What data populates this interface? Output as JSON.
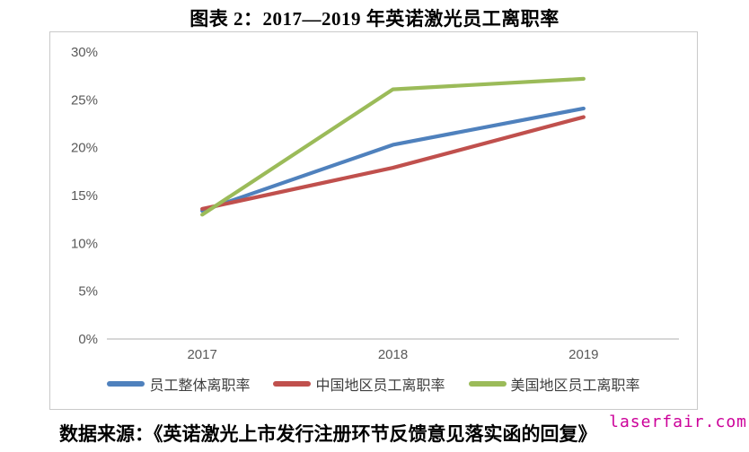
{
  "title": "图表 2：2017—2019 年英诺激光员工离职率",
  "footer": {
    "source": "数据来源：《英诺激光上市发行注册环节反馈意见落实函的回复》"
  },
  "watermark": "laserfair.com",
  "colors": {
    "watermark": "#CC0099",
    "axis_line": "#BFBFBF",
    "tick_text": "#595959",
    "chart_border": "#C9C9C9"
  },
  "chart_data": {
    "type": "line",
    "title": "图表 2：2017—2019 年英诺激光员工离职率",
    "categories": [
      "2017",
      "2018",
      "2019"
    ],
    "series": [
      {
        "name": "员工整体离职率",
        "color": "#4F81BD",
        "values": [
          13.4,
          20.3,
          24.1
        ]
      },
      {
        "name": "中国地区员工离职率",
        "color": "#C0504D",
        "values": [
          13.6,
          17.9,
          23.2
        ]
      },
      {
        "name": "美国地区员工离职率",
        "color": "#9BBB59",
        "values": [
          13.0,
          26.1,
          27.2
        ]
      }
    ],
    "xlabel": "",
    "ylabel": "",
    "ylim": [
      0,
      30
    ],
    "ytick_step": 5,
    "ytick_suffix": "%",
    "grid": false,
    "legend_position": "bottom"
  }
}
